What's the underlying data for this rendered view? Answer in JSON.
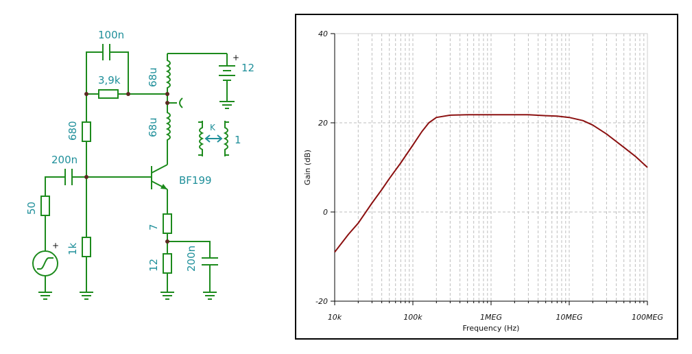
{
  "circuit": {
    "labels": {
      "c_feedback": "100n",
      "r_feedback": "3,9k",
      "l_top": "68u",
      "l_bottom": "68u",
      "battery": "12",
      "r_bias_top": "680",
      "c_input": "200n",
      "r_source": "50",
      "r_bias_bottom": "1k",
      "transistor": "BF199",
      "r_emitter": "7",
      "r_emitter_2": "12",
      "c_emitter": "200n",
      "coupling_k": "K",
      "coupling_value": "1",
      "plus_battery": "+",
      "plus_source": "+"
    }
  },
  "chart_data": {
    "type": "line",
    "title": "",
    "xlabel": "Frequency (Hz)",
    "ylabel": "Gain (dB)",
    "xscale": "log",
    "xlim": [
      10000,
      100000000
    ],
    "ylim": [
      -20,
      40
    ],
    "x_ticks": [
      {
        "value": 10000,
        "label": "10k"
      },
      {
        "value": 100000,
        "label": "100k"
      },
      {
        "value": 1000000,
        "label": "1MEG"
      },
      {
        "value": 10000000,
        "label": "10MEG"
      },
      {
        "value": 100000000,
        "label": "100MEG"
      }
    ],
    "y_ticks": [
      {
        "value": 40,
        "label": "40"
      },
      {
        "value": 20,
        "label": "20"
      },
      {
        "value": 0,
        "label": "0"
      },
      {
        "value": -20,
        "label": "-20"
      }
    ],
    "grid": true,
    "line_color": "#8b1010",
    "series": [
      {
        "x": [
          10000,
          15000,
          20000,
          30000,
          40000,
          50000,
          70000,
          100000,
          130000,
          160000,
          200000,
          300000,
          500000,
          1000000,
          2000000,
          3000000,
          5000000,
          7000000,
          10000000,
          15000000,
          20000000,
          30000000,
          50000000,
          70000000,
          100000000
        ],
        "values": [
          -9,
          -5,
          -2.5,
          2,
          5,
          7.5,
          11,
          15,
          18,
          20,
          21.2,
          21.7,
          21.8,
          21.8,
          21.8,
          21.8,
          21.6,
          21.5,
          21.2,
          20.5,
          19.5,
          17.5,
          14.5,
          12.5,
          10
        ]
      }
    ]
  }
}
